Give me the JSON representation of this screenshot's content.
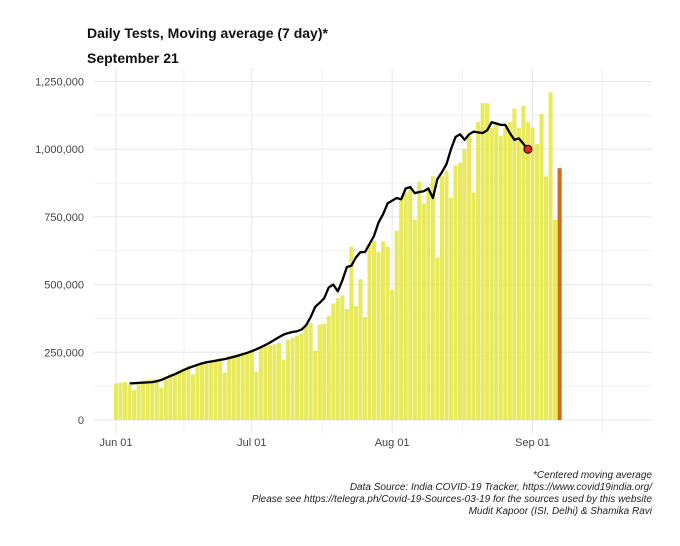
{
  "title": "Daily Tests, Moving average (7 day)*",
  "subtitle": "September 21",
  "captions": {
    "line1": "*Centered moving average",
    "line2": "Data Source: India COVID-19 Tracker, https://www.covid19india.org/",
    "line3": "Please see https://telegra.ph/Covid-19-Sources-03-19 for the sources used by this website",
    "line4": "Mudit Kapoor (ISI, Delhi) & Shamika Ravi"
  },
  "colors": {
    "bar": "#e6e84a",
    "last_bar": "#d2691e",
    "line": "#000000",
    "marker": "#e0261c",
    "grid": "#e6e6e6"
  },
  "chart_data": {
    "type": "bar",
    "x_start": "2020-06-01",
    "x_end": "2020-09-21",
    "ylim": [
      0,
      1300000
    ],
    "y_ticks": [
      {
        "value": 0,
        "label": "0"
      },
      {
        "value": 250000,
        "label": "250,000"
      },
      {
        "value": 500000,
        "label": "500,000"
      },
      {
        "value": 750000,
        "label": "750,000"
      },
      {
        "value": 1000000,
        "label": "1,000,000"
      },
      {
        "value": 1250000,
        "label": "1,250,000"
      }
    ],
    "x_ticks": [
      {
        "date": "2020-06-01",
        "label": "Jun 01"
      },
      {
        "date": "2020-07-01",
        "label": "Jul 01"
      },
      {
        "date": "2020-08-01",
        "label": "Aug 01"
      },
      {
        "date": "2020-09-01",
        "label": "Sep 01"
      }
    ],
    "series": [
      {
        "type": "bar",
        "values": [
          135000,
          138000,
          140000,
          130000,
          110000,
          140000,
          145000,
          148000,
          150000,
          152000,
          118000,
          160000,
          168000,
          172000,
          182000,
          190000,
          200000,
          168000,
          208000,
          212000,
          212000,
          216000,
          224000,
          228000,
          176000,
          236000,
          240000,
          244000,
          248000,
          252000,
          256000,
          178000,
          266000,
          272000,
          276000,
          280000,
          284000,
          222000,
          296000,
          304000,
          312000,
          320000,
          352000,
          358000,
          256000,
          352000,
          355000,
          385000,
          430000,
          450000,
          460000,
          410000,
          640000,
          420000,
          520000,
          380000,
          650000,
          660000,
          620000,
          660000,
          640000,
          480000,
          700000,
          820000,
          840000,
          860000,
          740000,
          880000,
          800000,
          860000,
          900000,
          600000,
          900000,
          920000,
          820000,
          940000,
          950000,
          1000000,
          1050000,
          840000,
          1100000,
          1170000,
          1170000,
          1080000,
          1100000,
          1050000,
          1080000,
          1100000,
          1150000,
          1080000,
          1160000,
          1100000,
          1080000,
          1020000,
          1130000,
          900000,
          1210000,
          740000,
          930000
        ],
        "highlight_last": true
      },
      {
        "type": "line",
        "x_start": "2020-06-04",
        "values": [
          135000,
          136000,
          137000,
          138000,
          139000,
          140000,
          143000,
          148000,
          155000,
          162000,
          169000,
          177000,
          185000,
          192000,
          198000,
          204000,
          209000,
          213000,
          216000,
          219000,
          222000,
          225000,
          229000,
          233000,
          238000,
          243000,
          248000,
          254000,
          261000,
          269000,
          277000,
          286000,
          296000,
          306000,
          315000,
          321000,
          325000,
          328000,
          334000,
          350000,
          380000,
          418000,
          433000,
          450000,
          490000,
          500000,
          475000,
          515000,
          565000,
          570000,
          600000,
          620000,
          620000,
          650000,
          680000,
          730000,
          760000,
          800000,
          810000,
          820000,
          815000,
          855000,
          860000,
          838000,
          842000,
          845000,
          855000,
          820000,
          890000,
          915000,
          945000,
          1000000,
          1045000,
          1055000,
          1035000,
          1055000,
          1065000,
          1062000,
          1060000,
          1070000,
          1100000,
          1095000,
          1090000,
          1090000,
          1060000,
          1035000,
          1040000,
          1020000,
          1000000
        ]
      }
    ]
  }
}
